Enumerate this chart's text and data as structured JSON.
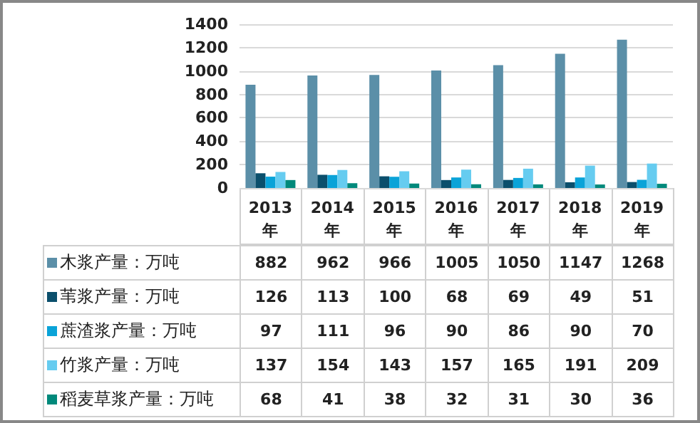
{
  "chart_data": {
    "type": "bar",
    "categories": [
      "2013年",
      "2014年",
      "2015年",
      "2016年",
      "2017年",
      "2018年",
      "2019年"
    ],
    "series": [
      {
        "name": "木浆产量：万吨",
        "color": "#5b8fa8",
        "values": [
          882,
          962,
          966,
          1005,
          1050,
          1147,
          1268
        ]
      },
      {
        "name": "苇浆产量：万吨",
        "color": "#0b4f6c",
        "values": [
          126,
          113,
          100,
          68,
          69,
          49,
          51
        ]
      },
      {
        "name": "蔗渣浆产量：万吨",
        "color": "#0aa3d8",
        "values": [
          97,
          111,
          96,
          90,
          86,
          90,
          70
        ]
      },
      {
        "name": "竹浆产量：万吨",
        "color": "#66ccf0",
        "values": [
          137,
          154,
          143,
          157,
          165,
          191,
          209
        ]
      },
      {
        "name": "稻麦草浆产量：万吨",
        "color": "#00897b",
        "values": [
          68,
          41,
          38,
          32,
          31,
          30,
          36
        ]
      }
    ],
    "ylim": [
      0,
      1400
    ],
    "yticks": [
      0,
      200,
      400,
      600,
      800,
      1000,
      1200,
      1400
    ],
    "grid": "y",
    "data_labels": true,
    "legend": "bottom"
  }
}
